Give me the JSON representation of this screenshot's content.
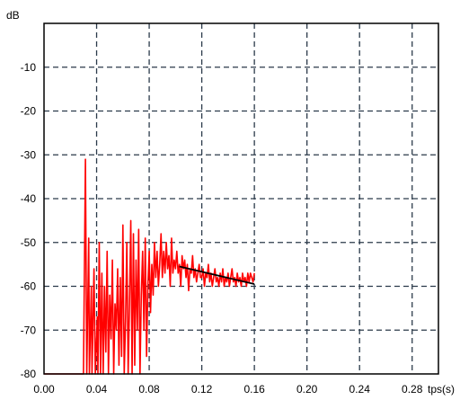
{
  "chart_data": {
    "type": "line",
    "xlabel": "tps(s)",
    "ylabel": "dB",
    "xlim": [
      0.0,
      0.3
    ],
    "ylim": [
      -80,
      0
    ],
    "grid": true,
    "x_ticks": [
      0.0,
      0.04,
      0.08,
      0.12,
      0.16,
      0.2,
      0.24,
      0.28
    ],
    "x_tick_labels": [
      "0.00",
      "0.04",
      "0.08",
      "0.12",
      "0.16",
      "0.20",
      "0.24",
      "0.28"
    ],
    "y_ticks": [
      -80,
      -70,
      -60,
      -50,
      -40,
      -30,
      -20,
      -10
    ],
    "y_tick_labels": [
      "-80",
      "-70",
      "-60",
      "-50",
      "-40",
      "-30",
      "-20",
      "-10"
    ],
    "series": [
      {
        "color": "#ff0000",
        "x": [
          0.0,
          0.03,
          0.0315,
          0.0325,
          0.034,
          0.0345,
          0.036,
          0.0365,
          0.038,
          0.039,
          0.0405,
          0.041,
          0.042,
          0.043,
          0.044,
          0.045,
          0.046,
          0.047,
          0.048,
          0.049,
          0.05,
          0.051,
          0.052,
          0.053,
          0.054,
          0.055,
          0.056,
          0.057,
          0.058,
          0.059,
          0.06,
          0.061,
          0.062,
          0.063,
          0.064,
          0.065,
          0.066,
          0.067,
          0.068,
          0.069,
          0.07,
          0.071,
          0.072,
          0.073,
          0.074,
          0.075,
          0.076,
          0.077,
          0.078,
          0.079,
          0.08,
          0.081,
          0.082,
          0.083,
          0.084,
          0.085,
          0.086,
          0.087,
          0.088,
          0.089,
          0.09,
          0.091,
          0.092,
          0.093,
          0.094,
          0.095,
          0.096,
          0.097,
          0.098,
          0.099,
          0.1,
          0.101,
          0.102,
          0.103,
          0.104,
          0.105,
          0.106,
          0.107,
          0.108,
          0.109,
          0.11,
          0.111,
          0.112,
          0.113,
          0.114,
          0.115,
          0.116,
          0.117,
          0.118,
          0.119,
          0.12,
          0.121,
          0.122,
          0.123,
          0.124,
          0.125,
          0.126,
          0.127,
          0.128,
          0.129,
          0.13,
          0.131,
          0.132,
          0.133,
          0.134,
          0.135,
          0.136,
          0.137,
          0.138,
          0.139,
          0.14,
          0.141,
          0.142,
          0.143,
          0.144,
          0.145,
          0.146,
          0.147,
          0.148,
          0.149,
          0.15,
          0.151,
          0.152,
          0.153,
          0.154,
          0.155,
          0.156,
          0.157,
          0.158,
          0.159,
          0.16
        ],
        "y": [
          -80,
          -80,
          -31,
          -80,
          -49,
          -80,
          -60,
          -80,
          -56,
          -80,
          -67,
          -80,
          -50,
          -80,
          -57,
          -80,
          -60,
          -75,
          -52,
          -80,
          -62,
          -72,
          -54,
          -80,
          -64,
          -70,
          -56,
          -78,
          -58,
          -76,
          -46,
          -80,
          -68,
          -50,
          -80,
          -64,
          -45,
          -80,
          -48,
          -78,
          -54,
          -70,
          -47,
          -80,
          -62,
          -52,
          -70,
          -49,
          -76,
          -60,
          -52,
          -66,
          -55,
          -62,
          -50,
          -58,
          -52,
          -60,
          -55,
          -48,
          -58,
          -52,
          -57,
          -50,
          -56,
          -53,
          -60,
          -49,
          -57,
          -54,
          -56,
          -52,
          -57,
          -55,
          -60,
          -53,
          -56,
          -54,
          -58,
          -55,
          -61,
          -56,
          -57,
          -53,
          -58,
          -56,
          -59,
          -57,
          -55,
          -58,
          -58,
          -56,
          -60,
          -57,
          -58,
          -55,
          -59,
          -57,
          -60,
          -58,
          -56,
          -59,
          -58,
          -60,
          -57,
          -59,
          -56,
          -60,
          -58,
          -59,
          -57,
          -60,
          -58,
          -56,
          -59,
          -58,
          -60,
          -57,
          -59,
          -58,
          -60,
          -57,
          -59,
          -58,
          -60,
          -57,
          -59,
          -57,
          -58,
          -59,
          -57
        ]
      },
      {
        "color": "#000000",
        "x": [
          0.103,
          0.16
        ],
        "y": [
          -55.5,
          -59.5
        ]
      }
    ]
  }
}
